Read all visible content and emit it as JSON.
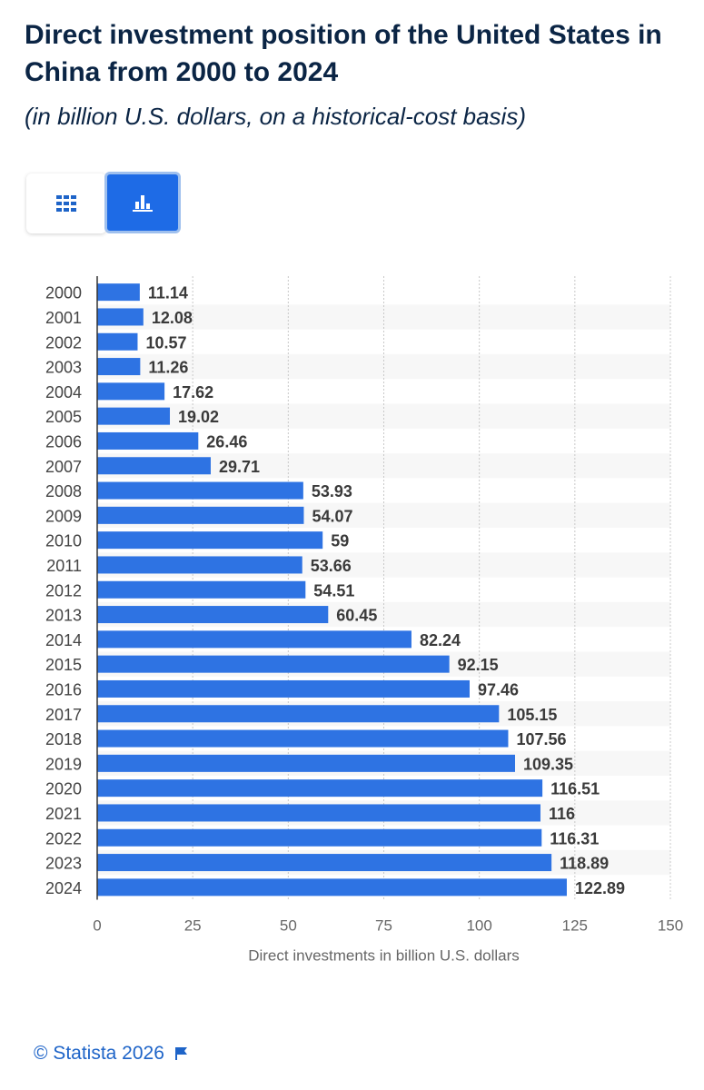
{
  "header": {
    "title": "Direct investment position of the United States in China from 2000 to 2024",
    "subtitle": "(in billion U.S. dollars, on a historical-cost basis)"
  },
  "view_toggle": {
    "table_icon": "table-grid-icon",
    "chart_icon": "bar-chart-icon",
    "active": "chart",
    "active_color": "#1e6be6"
  },
  "chart_data": {
    "type": "bar",
    "orientation": "horizontal",
    "categories": [
      "2000",
      "2001",
      "2002",
      "2003",
      "2004",
      "2005",
      "2006",
      "2007",
      "2008",
      "2009",
      "2010",
      "2011",
      "2012",
      "2013",
      "2014",
      "2015",
      "2016",
      "2017",
      "2018",
      "2019",
      "2020",
      "2021",
      "2022",
      "2023",
      "2024"
    ],
    "values": [
      11.14,
      12.08,
      10.57,
      11.26,
      17.62,
      19.02,
      26.46,
      29.71,
      53.93,
      54.07,
      59,
      53.66,
      54.51,
      60.45,
      82.24,
      92.15,
      97.46,
      105.15,
      107.56,
      109.35,
      116.51,
      116,
      116.31,
      118.89,
      122.89
    ],
    "value_labels": [
      "11.14",
      "12.08",
      "10.57",
      "11.26",
      "17.62",
      "19.02",
      "26.46",
      "29.71",
      "53.93",
      "54.07",
      "59",
      "53.66",
      "54.51",
      "60.45",
      "82.24",
      "92.15",
      "97.46",
      "105.15",
      "107.56",
      "109.35",
      "116.51",
      "116",
      "116.31",
      "118.89",
      "122.89"
    ],
    "xlabel": "Direct investments in billion U.S. dollars",
    "xlim": [
      0,
      150
    ],
    "xticks": [
      "0",
      "25",
      "50",
      "75",
      "100",
      "125",
      "150"
    ],
    "grid": true,
    "bar_color": "#2e73e3"
  },
  "footer": {
    "copyright": "© Statista 2026",
    "flag_icon": "flag-icon"
  }
}
